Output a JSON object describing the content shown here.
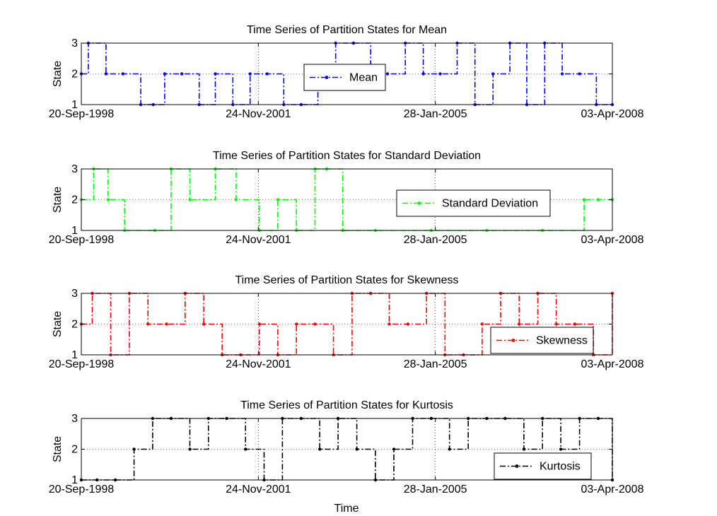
{
  "figure": {
    "xlabel": "Time",
    "ylabel": "State"
  },
  "chart_data": [
    {
      "type": "line",
      "title": "Time Series of Partition States for Mean",
      "xlabel": "",
      "ylabel": "State",
      "x_ticks": [
        "20-Sep-1998",
        "24-Nov-2001",
        "28-Jan-2005",
        "03-Apr-2008"
      ],
      "xlim": [
        "20-Sep-1998",
        "03-Apr-2008"
      ],
      "ylim": [
        1,
        3
      ],
      "y_ticks": [
        1,
        2,
        3
      ],
      "grid": true,
      "legend_position": "center",
      "series": [
        {
          "name": "Mean",
          "color": "#0000ff",
          "x": [
            "20-Sep-1998",
            "05-Nov-1998",
            "01-Mar-1999",
            "20-Jun-1999",
            "15-Oct-1999",
            "05-Jan-2000",
            "20-Mar-2000",
            "10-Jul-2000",
            "01-Nov-2000",
            "15-Feb-2001",
            "10-Jun-2001",
            "01-Oct-2001",
            "20-Jan-2002",
            "10-May-2002",
            "01-Sep-2002",
            "20-Dec-2002",
            "15-Apr-2003",
            "10-Aug-2003",
            "01-Dec-2003",
            "20-Mar-2004",
            "15-Jul-2004",
            "10-Nov-2004",
            "01-Mar-2005",
            "20-Jun-2005",
            "15-Oct-2005",
            "10-Feb-2006",
            "01-Jun-2006",
            "20-Sep-2006",
            "15-Jan-2007",
            "10-May-2007",
            "01-Sep-2007",
            "20-Dec-2007",
            "03-Apr-2008"
          ],
          "values": [
            2,
            3,
            2,
            2,
            1,
            1,
            2,
            2,
            1,
            2,
            1,
            2,
            2,
            1,
            1,
            2,
            3,
            3,
            2,
            2,
            3,
            2,
            2,
            3,
            1,
            2,
            3,
            1,
            3,
            2,
            2,
            1,
            1
          ]
        }
      ]
    },
    {
      "type": "line",
      "title": "Time Series of Partition States for Standard Deviation",
      "xlabel": "",
      "ylabel": "State",
      "x_ticks": [
        "20-Sep-1998",
        "24-Nov-2001",
        "28-Jan-2005",
        "03-Apr-2008"
      ],
      "xlim": [
        "20-Sep-1998",
        "03-Apr-2008"
      ],
      "ylim": [
        1,
        3
      ],
      "y_ticks": [
        1,
        2,
        3
      ],
      "grid": true,
      "legend_position": "center-right",
      "series": [
        {
          "name": "Standard Deviation",
          "color": "#00ff00",
          "x": [
            "20-Sep-1998",
            "10-Dec-1998",
            "15-Mar-1999",
            "01-Jul-1999",
            "15-Jan-2000",
            "01-May-2000",
            "01-Sep-2000",
            "15-Feb-2001",
            "01-Jul-2001",
            "01-Dec-2001",
            "01-Apr-2002",
            "01-Aug-2002",
            "01-Dec-2002",
            "15-Feb-2003",
            "01-Jun-2003",
            "01-Jan-2004",
            "01-Jan-2005",
            "01-Jan-2006",
            "01-Jan-2007",
            "01-Oct-2007",
            "01-Jan-2008",
            "03-Apr-2008"
          ],
          "values": [
            2,
            3,
            2,
            1,
            1,
            3,
            2,
            3,
            2,
            1,
            2,
            1,
            3,
            3,
            1,
            1,
            1,
            1,
            1,
            2,
            2,
            2
          ]
        }
      ]
    },
    {
      "type": "line",
      "title": "Time Series of Partition States for Skewness",
      "xlabel": "",
      "ylabel": "State",
      "x_ticks": [
        "20-Sep-1998",
        "24-Nov-2001",
        "28-Jan-2005",
        "03-Apr-2008"
      ],
      "xlim": [
        "20-Sep-1998",
        "03-Apr-2008"
      ],
      "ylim": [
        1,
        3
      ],
      "y_ticks": [
        1,
        2,
        3
      ],
      "grid": true,
      "legend_position": "bottom-right",
      "series": [
        {
          "name": "Skewness",
          "color": "#ff0000",
          "x": [
            "20-Sep-1998",
            "01-Dec-1998",
            "01-Apr-1999",
            "01-Aug-1999",
            "01-Dec-1999",
            "01-Apr-2000",
            "01-Aug-2000",
            "01-Dec-2000",
            "01-Apr-2001",
            "01-Aug-2001",
            "01-Dec-2001",
            "01-Apr-2002",
            "01-Aug-2002",
            "01-Dec-2002",
            "01-Apr-2003",
            "01-Aug-2003",
            "01-Dec-2003",
            "01-Apr-2004",
            "01-Aug-2004",
            "01-Dec-2004",
            "01-Apr-2005",
            "01-Aug-2005",
            "01-Dec-2005",
            "01-Apr-2006",
            "01-Aug-2006",
            "01-Dec-2006",
            "01-Apr-2007",
            "01-Aug-2007",
            "01-Dec-2007",
            "03-Apr-2008"
          ],
          "values": [
            2,
            3,
            1,
            3,
            2,
            2,
            3,
            2,
            1,
            1,
            2,
            1,
            2,
            2,
            1,
            3,
            3,
            2,
            2,
            3,
            1,
            1,
            2,
            3,
            2,
            3,
            2,
            2,
            1,
            3
          ]
        }
      ]
    },
    {
      "type": "line",
      "title": "Time Series of Partition States for Kurtosis",
      "xlabel": "Time",
      "ylabel": "State",
      "x_ticks": [
        "20-Sep-1998",
        "24-Nov-2001",
        "28-Jan-2005",
        "03-Apr-2008"
      ],
      "xlim": [
        "20-Sep-1998",
        "03-Apr-2008"
      ],
      "ylim": [
        1,
        3
      ],
      "y_ticks": [
        1,
        2,
        3
      ],
      "grid": true,
      "legend_position": "bottom-right",
      "series": [
        {
          "name": "Kurtosis",
          "color": "#000000",
          "x": [
            "20-Sep-1998",
            "01-Jan-1999",
            "01-May-1999",
            "01-Sep-1999",
            "01-Jan-2000",
            "01-May-2000",
            "01-Sep-2000",
            "01-Jan-2001",
            "01-May-2001",
            "01-Sep-2001",
            "01-Jan-2002",
            "01-May-2002",
            "01-Sep-2002",
            "01-Jan-2003",
            "01-May-2003",
            "01-Sep-2003",
            "01-Jan-2004",
            "01-May-2004",
            "01-Sep-2004",
            "01-Jan-2005",
            "01-May-2005",
            "01-Sep-2005",
            "01-Jan-2006",
            "01-May-2006",
            "01-Sep-2006",
            "01-Jan-2007",
            "01-May-2007",
            "01-Sep-2007",
            "01-Jan-2008",
            "03-Apr-2008"
          ],
          "values": [
            1,
            1,
            1,
            2,
            3,
            3,
            2,
            3,
            3,
            2,
            1,
            3,
            3,
            2,
            3,
            2,
            1,
            2,
            3,
            3,
            2,
            3,
            3,
            3,
            2,
            3,
            2,
            3,
            3,
            1
          ]
        }
      ]
    }
  ]
}
